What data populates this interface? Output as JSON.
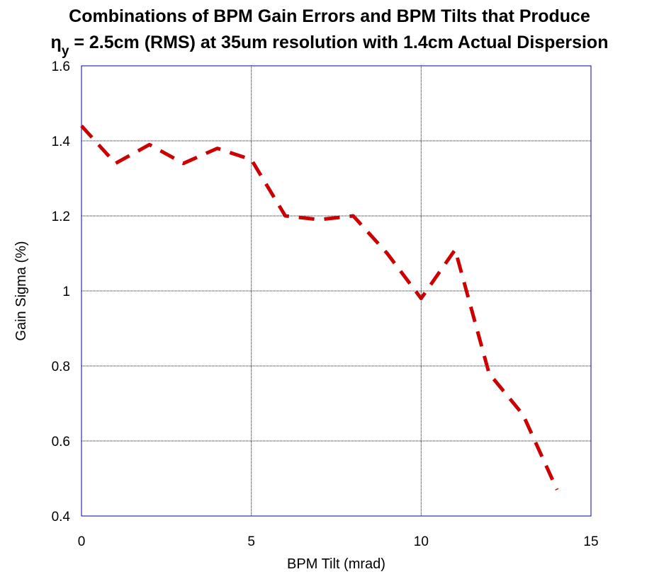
{
  "chart_data": {
    "type": "line",
    "title_line1": "Combinations of BPM Gain Errors and BPM Tilts that Produce",
    "title_eta": "η",
    "title_eta_sub": "y",
    "title_line2_rest": " = 2.5cm (RMS) at 35um resolution with 1.4cm Actual Dispersion",
    "xlabel": "BPM Tilt (mrad)",
    "ylabel": "Gain Sigma (%)",
    "xlim": [
      0,
      15
    ],
    "ylim": [
      0.4,
      1.6
    ],
    "xticks": [
      0,
      5,
      10,
      15
    ],
    "yticks": [
      0.4,
      0.6,
      0.8,
      1,
      1.2,
      1.4,
      1.6
    ],
    "xtick_labels": [
      "0",
      "5",
      "10",
      "15"
    ],
    "ytick_labels": [
      "0.4",
      "0.6",
      "0.8",
      "1",
      "1.2",
      "1.4",
      "1.6"
    ],
    "grid": true,
    "series": [
      {
        "line_color": "#cc0000",
        "line_style": "dashed",
        "x": [
          0,
          1,
          2,
          3,
          4,
          5,
          6,
          7,
          8,
          9,
          10,
          11,
          12,
          13,
          14
        ],
        "y": [
          1.44,
          1.34,
          1.39,
          1.34,
          1.38,
          1.35,
          1.2,
          1.19,
          1.2,
          1.1,
          0.98,
          1.11,
          0.78,
          0.67,
          0.47
        ]
      }
    ],
    "colors": {
      "grid": "#0000aa",
      "frame": "#0000aa",
      "series": "#cc0000"
    }
  }
}
